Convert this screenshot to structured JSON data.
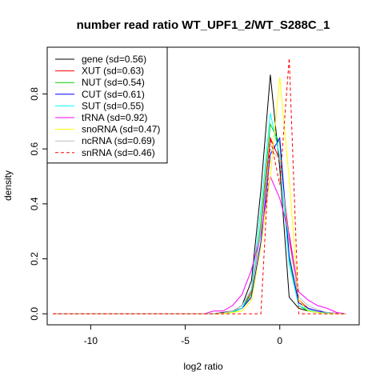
{
  "chart_data": {
    "type": "line",
    "title": "number read ratio WT_UPF1_2/WT_S288C_1",
    "xlabel": "log2 ratio",
    "ylabel": "density",
    "xlim": [
      -12.3,
      4.2
    ],
    "ylim": [
      -0.04,
      0.97
    ],
    "xticks": [
      -10,
      -5,
      0
    ],
    "xtick_labels": [
      "-10",
      "-5",
      "0"
    ],
    "yticks": [
      0.0,
      0.2,
      0.4,
      0.6,
      0.8
    ],
    "ytick_labels": [
      "0.0",
      "0.2",
      "0.4",
      "0.6",
      "0.8"
    ],
    "legend_position": "top-left",
    "grid": false,
    "series": [
      {
        "name": "gene (sd=0.56)",
        "color": "#000000",
        "dash": "solid",
        "x": [
          -12,
          -3.5,
          -3,
          -2.5,
          -2,
          -1.5,
          -1,
          -0.5,
          0,
          0.5,
          1,
          1.5,
          2,
          2.5,
          3,
          3.5
        ],
        "y": [
          0,
          0,
          0.005,
          0.01,
          0.03,
          0.12,
          0.45,
          0.87,
          0.53,
          0.06,
          0.02,
          0.01,
          0.005,
          0.003,
          0.002,
          0
        ]
      },
      {
        "name": "XUT (sd=0.63)",
        "color": "#ff0000",
        "dash": "solid",
        "x": [
          -12,
          -3.5,
          -3,
          -2.5,
          -2,
          -1.5,
          -1,
          -0.5,
          0,
          0.5,
          1,
          1.5,
          2,
          2.5,
          3,
          3.5
        ],
        "y": [
          0,
          0,
          0.003,
          0.01,
          0.02,
          0.08,
          0.3,
          0.64,
          0.56,
          0.28,
          0.05,
          0.02,
          0.01,
          0.005,
          0.002,
          0
        ]
      },
      {
        "name": "NUT (sd=0.54)",
        "color": "#00cd00",
        "dash": "solid",
        "x": [
          -12,
          -3.5,
          -3,
          -2.5,
          -2,
          -1.5,
          -1,
          -0.5,
          0,
          0.5,
          1,
          1.5,
          2,
          2.5,
          3,
          3.5
        ],
        "y": [
          0,
          0,
          0.002,
          0.005,
          0.02,
          0.07,
          0.33,
          0.69,
          0.62,
          0.2,
          0.03,
          0.01,
          0.005,
          0.002,
          0.001,
          0
        ]
      },
      {
        "name": "CUT (sd=0.61)",
        "color": "#0000ff",
        "dash": "solid",
        "x": [
          -12,
          -3.5,
          -3,
          -2.5,
          -2,
          -1.5,
          -1,
          -0.5,
          0,
          0.5,
          1,
          1.5,
          2,
          2.5,
          3,
          3.5
        ],
        "y": [
          0,
          0,
          0.002,
          0.008,
          0.02,
          0.06,
          0.26,
          0.58,
          0.64,
          0.21,
          0.04,
          0.02,
          0.01,
          0.005,
          0.002,
          0
        ]
      },
      {
        "name": "SUT (sd=0.55)",
        "color": "#00ffff",
        "dash": "solid",
        "x": [
          -12,
          -3.5,
          -3,
          -2.5,
          -2,
          -1.5,
          -1,
          -0.5,
          0,
          0.5,
          1,
          1.5,
          2,
          2.5,
          3,
          3.5
        ],
        "y": [
          0,
          0,
          0.002,
          0.008,
          0.02,
          0.09,
          0.38,
          0.73,
          0.57,
          0.18,
          0.03,
          0.015,
          0.005,
          0.003,
          0.001,
          0
        ]
      },
      {
        "name": "tRNA (sd=0.92)",
        "color": "#ff00ff",
        "dash": "solid",
        "x": [
          -12,
          -4,
          -3.5,
          -3,
          -2.5,
          -2,
          -1.5,
          -1,
          -0.5,
          0,
          0.5,
          1,
          1.5,
          2,
          2.5,
          3,
          3.5
        ],
        "y": [
          0,
          0,
          0.01,
          0.01,
          0.03,
          0.07,
          0.16,
          0.29,
          0.5,
          0.42,
          0.29,
          0.08,
          0.05,
          0.03,
          0.02,
          0.005,
          0
        ]
      },
      {
        "name": "snoRNA (sd=0.47)",
        "color": "#ffff00",
        "dash": "solid",
        "x": [
          -12,
          -3.5,
          -3,
          -2.5,
          -2,
          -1.5,
          -1,
          -0.5,
          0,
          0.5,
          1,
          1.5,
          2,
          2.5,
          3,
          3.5
        ],
        "y": [
          0,
          0,
          0,
          0.005,
          0.01,
          0.05,
          0.24,
          0.5,
          0.86,
          0.49,
          0.05,
          0.01,
          0.005,
          0,
          0,
          0
        ]
      },
      {
        "name": "ncRNA (sd=0.69)",
        "color": "#bebebe",
        "dash": "solid",
        "x": [
          -12,
          -3.5,
          -3,
          -2.5,
          -2,
          -1.5,
          -1,
          -0.5,
          0,
          0.5,
          1,
          1.5,
          2,
          2.5,
          3,
          3.5
        ],
        "y": [
          0,
          0,
          0.003,
          0.01,
          0.03,
          0.09,
          0.3,
          0.6,
          0.56,
          0.26,
          0.06,
          0.03,
          0.015,
          0.005,
          0.002,
          0
        ]
      },
      {
        "name": "snRNA (sd=0.46)",
        "color": "#ff0000",
        "dash": "dashed",
        "x": [
          -12,
          -1,
          -0.5,
          0,
          0.5,
          1,
          3.5
        ],
        "y": [
          0,
          0,
          0.64,
          0.47,
          0.93,
          0,
          0
        ]
      }
    ]
  }
}
